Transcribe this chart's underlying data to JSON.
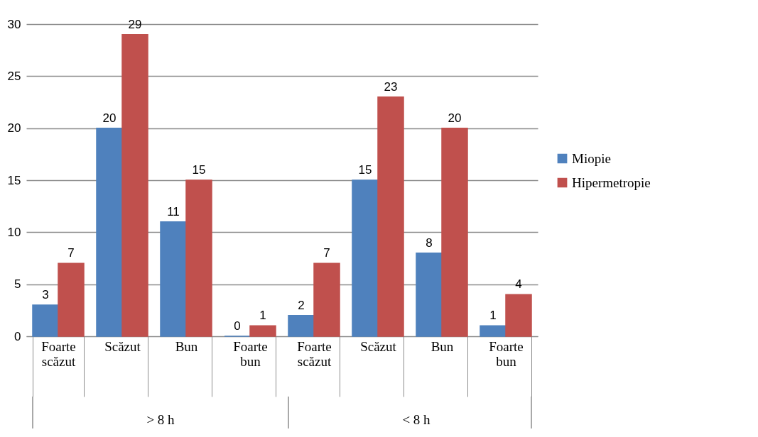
{
  "chart_data": {
    "type": "bar",
    "categories": [
      "Foarte scăzut",
      "Scăzut",
      "Bun",
      "Foarte bun",
      "Foarte scăzut",
      "Scăzut",
      "Bun",
      "Foarte bun"
    ],
    "series": [
      {
        "name": "Miopie",
        "color": "#4f81bd",
        "values": [
          3,
          20,
          11,
          0,
          2,
          15,
          8,
          1
        ]
      },
      {
        "name": "Hipermetropie",
        "color": "#c0504d",
        "values": [
          7,
          29,
          15,
          1,
          7,
          23,
          20,
          4
        ]
      }
    ],
    "ylim": [
      0,
      30
    ],
    "yticks": [
      0,
      5,
      10,
      15,
      20,
      25,
      30
    ],
    "grid": "y",
    "legend": "right",
    "data_labels": true,
    "annotations": [
      "> 8 h",
      "< 8 h"
    ]
  }
}
